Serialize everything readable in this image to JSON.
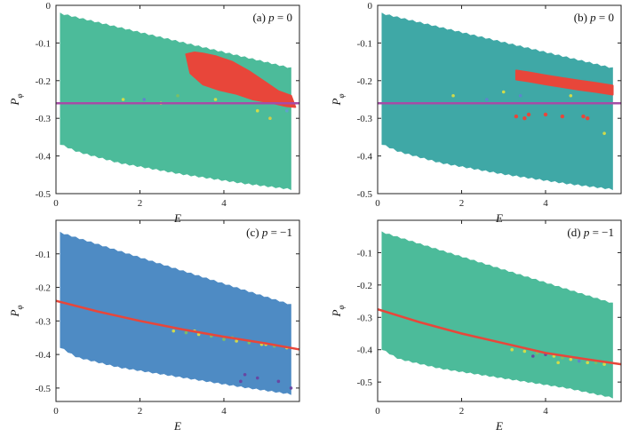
{
  "chart_data": [
    {
      "type": "scatter",
      "title": "(a) p = 0",
      "title_parts": {
        "prefix": "(a)",
        "var": "p",
        "rest": "= 0"
      },
      "xlabel": "E",
      "ylabel": "P",
      "ylabel_sub": "φ",
      "xlim": [
        0,
        5.8
      ],
      "ylim": [
        -0.5,
        0
      ],
      "xticks": [
        "0",
        "2",
        "4"
      ],
      "yticks": [
        "0",
        "-0.1",
        "-0.2",
        "-0.3",
        "-0.4",
        "-0.5"
      ],
      "region_color": "#4cbb9a",
      "region_upper": {
        "x": [
          0.1,
          5.6
        ],
        "y": [
          -0.02,
          -0.165
        ]
      },
      "region_lower": {
        "x": [
          0.1,
          0.5,
          1.5,
          3.0,
          4.5,
          5.6
        ],
        "y": [
          -0.37,
          -0.39,
          -0.42,
          -0.45,
          -0.475,
          -0.49
        ]
      },
      "reference_line": {
        "color": "#a64ca6",
        "y": -0.26
      },
      "highlight_cluster": {
        "color": "#e8463a",
        "outline_x": [
          3.1,
          3.3,
          3.5,
          3.8,
          4.2,
          4.6,
          5.0,
          5.3,
          5.6,
          5.7,
          5.5,
          5.1,
          4.7,
          4.3,
          3.9,
          3.5,
          3.2
        ],
        "outline_y": [
          -0.13,
          -0.125,
          -0.128,
          -0.135,
          -0.15,
          -0.175,
          -0.205,
          -0.228,
          -0.24,
          -0.27,
          -0.268,
          -0.258,
          -0.25,
          -0.235,
          -0.225,
          -0.21,
          -0.18
        ]
      },
      "scatter_points": {
        "x": [
          1.6,
          2.5,
          2.9,
          4.8,
          5.1,
          5.5,
          3.8,
          2.1
        ],
        "y": [
          -0.25,
          -0.26,
          -0.24,
          -0.28,
          -0.3,
          -0.28,
          -0.25,
          -0.25
        ],
        "colors": [
          "#e0e040",
          "#e0e040",
          "#80c060",
          "#e0e040",
          "#e0d040",
          "#60a0d0",
          "#e0e040",
          "#6080d0"
        ]
      }
    },
    {
      "type": "scatter",
      "title": "(b) p = 0",
      "title_parts": {
        "prefix": "(b)",
        "var": "p",
        "rest": "= 0"
      },
      "xlabel": "E",
      "ylabel": "P",
      "ylabel_sub": "φ",
      "xlim": [
        0,
        5.8
      ],
      "ylim": [
        -0.5,
        0
      ],
      "xticks": [
        "0",
        "2",
        "4"
      ],
      "yticks": [
        "0",
        "-0.1",
        "-0.2",
        "-0.3",
        "-0.4",
        "-0.5"
      ],
      "region_color": "#3fa8a6",
      "region_upper": {
        "x": [
          0.1,
          5.6
        ],
        "y": [
          -0.02,
          -0.165
        ]
      },
      "region_lower": {
        "x": [
          0.1,
          0.5,
          1.5,
          3.0,
          4.5,
          5.6
        ],
        "y": [
          -0.37,
          -0.39,
          -0.42,
          -0.45,
          -0.475,
          -0.49
        ]
      },
      "reference_line": {
        "color": "#a64ca6",
        "y": -0.26
      },
      "highlight_cluster": {
        "color": "#e8463a",
        "band_x": [
          3.3,
          3.6,
          4.0,
          4.4,
          4.8,
          5.2,
          5.6
        ],
        "band_y": [
          -0.185,
          -0.19,
          -0.198,
          -0.205,
          -0.212,
          -0.218,
          -0.225
        ],
        "band_halfwidth": 0.012,
        "outliers_x": [
          3.3,
          3.6,
          4.0,
          4.4,
          4.9,
          5.0,
          3.5
        ],
        "outliers_y": [
          -0.295,
          -0.29,
          -0.29,
          -0.295,
          -0.295,
          -0.3,
          -0.3
        ]
      },
      "scatter_points": {
        "x": [
          1.8,
          2.6,
          3.0,
          3.4,
          4.6,
          5.4
        ],
        "y": [
          -0.24,
          -0.25,
          -0.23,
          -0.24,
          -0.24,
          -0.34
        ],
        "colors": [
          "#e0e040",
          "#6080d0",
          "#e0e040",
          "#6080d0",
          "#e0e040",
          "#e0e040"
        ]
      }
    },
    {
      "type": "scatter",
      "title": "(c) p = −1",
      "title_parts": {
        "prefix": "(c)",
        "var": "p",
        "rest": "= −1"
      },
      "xlabel": "E",
      "ylabel": "P",
      "ylabel_sub": "φ",
      "xlim": [
        0,
        5.8
      ],
      "ylim": [
        -0.54,
        0
      ],
      "xticks": [
        "0",
        "2",
        "4"
      ],
      "yticks": [
        "-0.1",
        "-0.2",
        "-0.3",
        "-0.4",
        "-0.5"
      ],
      "region_color": "#4e8bc4",
      "region_upper": {
        "x": [
          0.1,
          5.6
        ],
        "y": [
          -0.035,
          -0.25
        ]
      },
      "region_lower": {
        "x": [
          0.1,
          0.5,
          1.5,
          3.0,
          4.5,
          5.6
        ],
        "y": [
          -0.38,
          -0.41,
          -0.44,
          -0.47,
          -0.5,
          -0.52
        ]
      },
      "reference_line": {
        "color": "#e8463a",
        "x": [
          0,
          1,
          2,
          3,
          4,
          5,
          5.8
        ],
        "y": [
          -0.24,
          -0.272,
          -0.3,
          -0.325,
          -0.347,
          -0.367,
          -0.385
        ]
      },
      "scatter_points": {
        "x": [
          2.8,
          3.1,
          3.4,
          3.7,
          4.0,
          4.3,
          4.6,
          4.9,
          5.2,
          5.5,
          3.3,
          4.2,
          5.0,
          4.5,
          4.8,
          5.3,
          5.6,
          4.4
        ],
        "y": [
          -0.33,
          -0.335,
          -0.34,
          -0.345,
          -0.355,
          -0.36,
          -0.365,
          -0.37,
          -0.375,
          -0.38,
          -0.33,
          -0.35,
          -0.37,
          -0.46,
          -0.47,
          -0.48,
          -0.5,
          -0.48
        ],
        "colors": [
          "#e0e040",
          "#80c060",
          "#e0e040",
          "#80c060",
          "#80c060",
          "#e0e040",
          "#80c060",
          "#e0e040",
          "#80c060",
          "#e0e040",
          "#e0e040",
          "#80c060",
          "#e0e040",
          "#6a3fa0",
          "#6a3fa0",
          "#6a3fa0",
          "#6a3fa0",
          "#6a3fa0"
        ]
      }
    },
    {
      "type": "scatter",
      "title": "(d) p = −1",
      "title_parts": {
        "prefix": "(d)",
        "var": "p",
        "rest": "= −1"
      },
      "xlabel": "E",
      "ylabel": "P",
      "ylabel_sub": "φ",
      "xlim": [
        0,
        5.8
      ],
      "ylim": [
        -0.56,
        0
      ],
      "xticks": [
        "0",
        "2",
        "4"
      ],
      "yticks": [
        "-0.1",
        "-0.2",
        "-0.3",
        "-0.4",
        "-0.5"
      ],
      "region_color": "#4cbb9a",
      "region_upper": {
        "x": [
          0.1,
          5.6
        ],
        "y": [
          -0.035,
          -0.255
        ]
      },
      "region_lower": {
        "x": [
          0.1,
          0.5,
          1.5,
          3.0,
          4.5,
          5.6
        ],
        "y": [
          -0.4,
          -0.43,
          -0.46,
          -0.49,
          -0.52,
          -0.55
        ]
      },
      "reference_line": {
        "color": "#e8463a",
        "x": [
          0,
          1,
          2,
          3,
          4,
          5,
          5.8
        ],
        "y": [
          -0.275,
          -0.315,
          -0.35,
          -0.38,
          -0.41,
          -0.43,
          -0.445
        ]
      },
      "scatter_points": {
        "x": [
          3.2,
          3.5,
          3.8,
          4.0,
          4.2,
          4.4,
          4.6,
          4.8,
          5.0,
          5.2,
          5.4,
          3.7,
          4.3
        ],
        "y": [
          -0.4,
          -0.405,
          -0.41,
          -0.415,
          -0.42,
          -0.425,
          -0.43,
          -0.435,
          -0.44,
          -0.44,
          -0.445,
          -0.42,
          -0.44
        ],
        "colors": [
          "#e0e040",
          "#e0e040",
          "#80c060",
          "#6a3fa0",
          "#e0e040",
          "#80c060",
          "#e0e040",
          "#6080d0",
          "#e0e040",
          "#80c060",
          "#e0e040",
          "#6a3fa0",
          "#e0e040"
        ]
      }
    }
  ]
}
